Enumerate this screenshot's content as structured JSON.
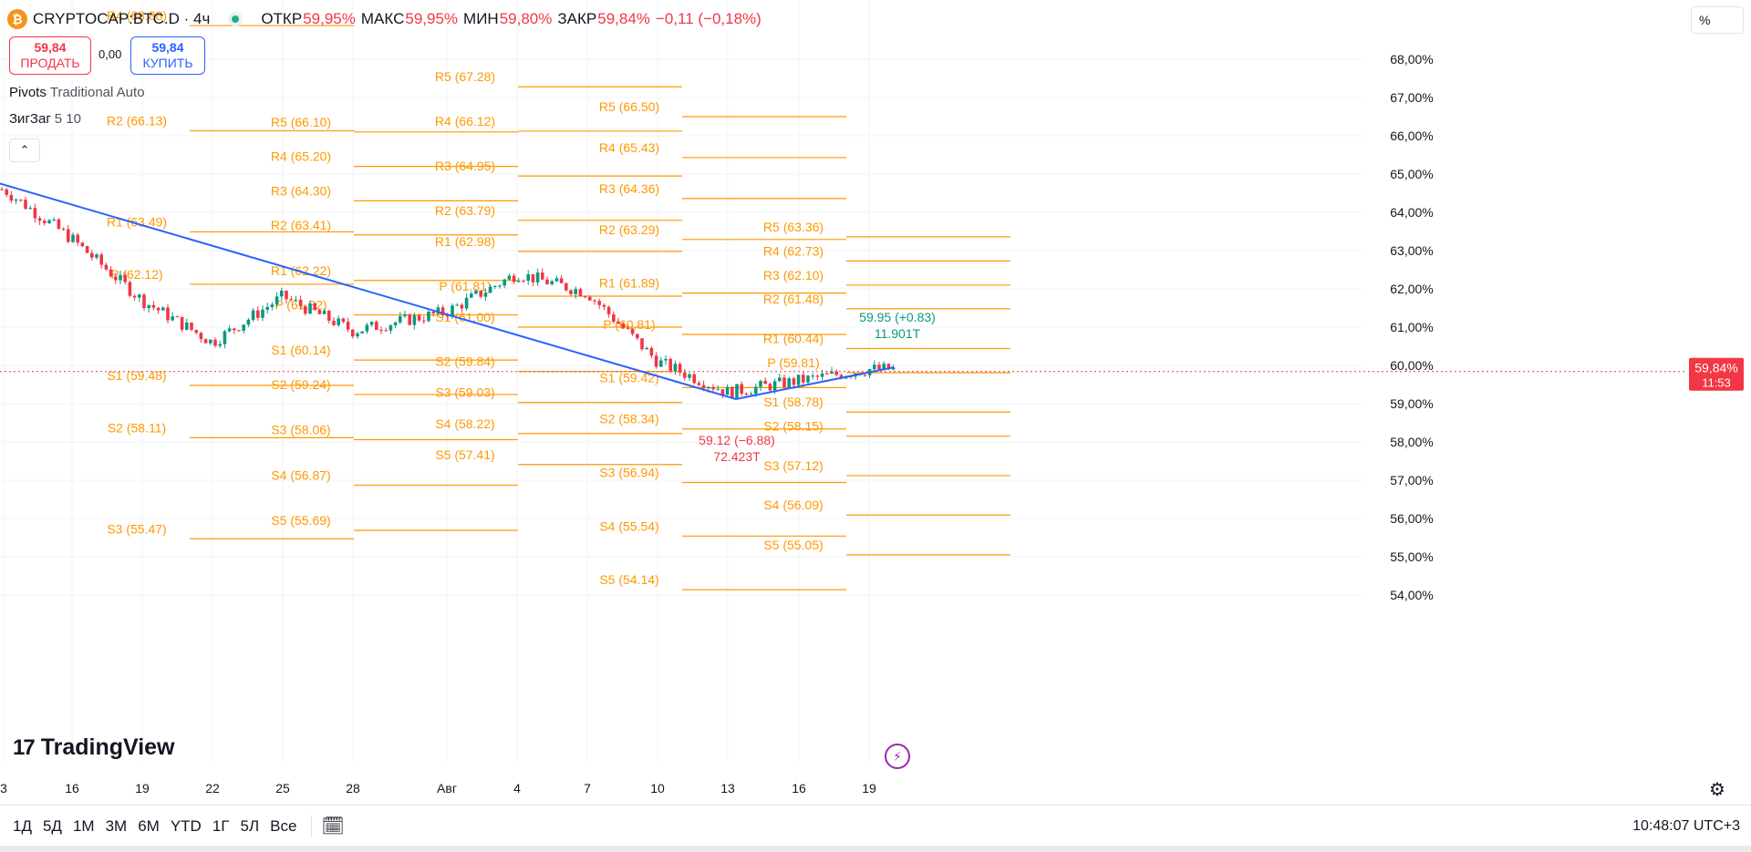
{
  "header": {
    "symbol": "CRYPTOCAP:BTC.D · 4ч",
    "coin_letter": "₿",
    "ohlc": [
      {
        "label": "ОТКР",
        "value": "59,95%"
      },
      {
        "label": "МАКС",
        "value": "59,95%"
      },
      {
        "label": "МИН",
        "value": "59,80%"
      },
      {
        "label": "ЗАКР",
        "value": "59,84%"
      }
    ],
    "change": "−0,11 (−0,18%)"
  },
  "trade": {
    "sell_price": "59,84",
    "sell_label": "ПРОДАТЬ",
    "spread": "0,00",
    "buy_price": "59,84",
    "buy_label": "КУПИТЬ"
  },
  "indicators": [
    {
      "name": "Pivots",
      "params": "Traditional Auto"
    },
    {
      "name": "ЗигЗаг",
      "params": "5 10"
    }
  ],
  "price_scale": {
    "unit_label": "%",
    "current_price": "59,84%",
    "countdown": "11:53"
  },
  "logo": {
    "mark": "17",
    "text": "TradingView"
  },
  "bottom": {
    "ranges": [
      "1Д",
      "5Д",
      "1М",
      "3М",
      "6М",
      "YTD",
      "1Г",
      "5Л",
      "Все"
    ],
    "clock": "10:48:07 UTC+3"
  },
  "colors": {
    "pivot": "#ff9800",
    "zigzag": "#2962ff",
    "up": "#089981",
    "down": "#f23645",
    "current_line": "#f23645"
  },
  "icons": {
    "settings": "gear-icon",
    "bolt": "bolt-icon",
    "calendar": "calendar-range-icon",
    "collapse": "chevron-up-icon",
    "coin": "bitcoin-icon"
  },
  "chart_data": {
    "type": "candlestick",
    "timeframe": "4h",
    "y_unit": "%",
    "y_ticks": [
      "54,00%",
      "55,00%",
      "56,00%",
      "57,00%",
      "58,00%",
      "59,00%",
      "60,00%",
      "61,00%",
      "62,00%",
      "63,00%",
      "64,00%",
      "65,00%",
      "66,00%",
      "67,00%",
      "68,00%"
    ],
    "ylim": [
      53.4,
      68.6
    ],
    "x_ticks": [
      "3",
      "16",
      "19",
      "22",
      "25",
      "28",
      "Авг",
      "4",
      "7",
      "10",
      "13",
      "16",
      "19"
    ],
    "close_path": [
      [
        "3",
        64.6
      ],
      [
        "16",
        63.3
      ],
      [
        "19",
        61.7
      ],
      [
        "22",
        60.6
      ],
      [
        "25",
        61.8
      ],
      [
        "28",
        60.9
      ],
      [
        "Авг",
        61.4
      ],
      [
        "4",
        62.4
      ],
      [
        "7",
        61.9
      ],
      [
        "10",
        60.1
      ],
      [
        "13",
        59.3
      ],
      [
        "16",
        59.6
      ],
      [
        "19",
        59.9
      ]
    ],
    "last_close": 59.84,
    "pivot_periods": [
      {
        "levels": [
          {
            "label": "R4 (68.88)",
            "value": 68.88
          },
          {
            "label": "R2 (66.13)",
            "value": 66.13
          },
          {
            "label": "R1 (63.49)",
            "value": 63.49
          },
          {
            "label": "P (62.12)",
            "value": 62.12
          },
          {
            "label": "S1 (59.48)",
            "value": 59.48
          },
          {
            "label": "S2 (58.11)",
            "value": 58.11
          },
          {
            "label": "S3 (55.47)",
            "value": 55.47
          }
        ]
      },
      {
        "levels": [
          {
            "label": "R5 (66.10)",
            "value": 66.1
          },
          {
            "label": "R4 (65.20)",
            "value": 65.2
          },
          {
            "label": "R3 (64.30)",
            "value": 64.3
          },
          {
            "label": "R2 (63.41)",
            "value": 63.41
          },
          {
            "label": "R1 (62.22)",
            "value": 62.22
          },
          {
            "label": "P (61.32)",
            "value": 61.32
          },
          {
            "label": "S1 (60.14)",
            "value": 60.14
          },
          {
            "label": "S2 (59.24)",
            "value": 59.24
          },
          {
            "label": "S3 (58.06)",
            "value": 58.06
          },
          {
            "label": "S4 (56.87)",
            "value": 56.87
          },
          {
            "label": "S5 (55.69)",
            "value": 55.69
          }
        ]
      },
      {
        "levels": [
          {
            "label": "R5 (67.28)",
            "value": 67.28
          },
          {
            "label": "R4 (66.12)",
            "value": 66.12
          },
          {
            "label": "R3 (64.95)",
            "value": 64.95
          },
          {
            "label": "R2 (63.79)",
            "value": 63.79
          },
          {
            "label": "R1 (62.98)",
            "value": 62.98
          },
          {
            "label": "P (61.81)",
            "value": 61.81
          },
          {
            "label": "S1 (61.00)",
            "value": 61.0
          },
          {
            "label": "S2 (59.84)",
            "value": 59.84
          },
          {
            "label": "S3 (59.03)",
            "value": 59.03
          },
          {
            "label": "S4 (58.22)",
            "value": 58.22
          },
          {
            "label": "S5 (57.41)",
            "value": 57.41
          }
        ]
      },
      {
        "levels": [
          {
            "label": "R5 (66.50)",
            "value": 66.5
          },
          {
            "label": "R4 (65.43)",
            "value": 65.43
          },
          {
            "label": "R3 (64.36)",
            "value": 64.36
          },
          {
            "label": "R2 (63.29)",
            "value": 63.29
          },
          {
            "label": "R1 (61.89)",
            "value": 61.89
          },
          {
            "label": "P (60.81)",
            "value": 60.81
          },
          {
            "label": "S1 (59.42)",
            "value": 59.42
          },
          {
            "label": "S2 (58.34)",
            "value": 58.34
          },
          {
            "label": "S3 (56.94)",
            "value": 56.94
          },
          {
            "label": "S4 (55.54)",
            "value": 55.54
          },
          {
            "label": "S5 (54.14)",
            "value": 54.14
          }
        ]
      },
      {
        "levels": [
          {
            "label": "R5 (63.36)",
            "value": 63.36
          },
          {
            "label": "R4 (62.73)",
            "value": 62.73
          },
          {
            "label": "R3 (62.10)",
            "value": 62.1
          },
          {
            "label": "R2 (61.48)",
            "value": 61.48
          },
          {
            "label": "R1 (60.44)",
            "value": 60.44
          },
          {
            "label": "P (59.81)",
            "value": 59.81
          },
          {
            "label": "S1 (58.78)",
            "value": 58.78
          },
          {
            "label": "S2 (58.15)",
            "value": 58.15
          },
          {
            "label": "S3 (57.12)",
            "value": 57.12
          },
          {
            "label": "S4 (56.09)",
            "value": 56.09
          },
          {
            "label": "S5 (55.05)",
            "value": 55.05
          }
        ]
      }
    ],
    "zigzag_labels": [
      {
        "line1": "59.12 (−6.88)",
        "line2": "72.423T",
        "value": 59.12,
        "kind": "low"
      },
      {
        "line1": "59.95 (+0.83)",
        "line2": "11.901T",
        "value": 59.95,
        "kind": "high"
      }
    ]
  }
}
